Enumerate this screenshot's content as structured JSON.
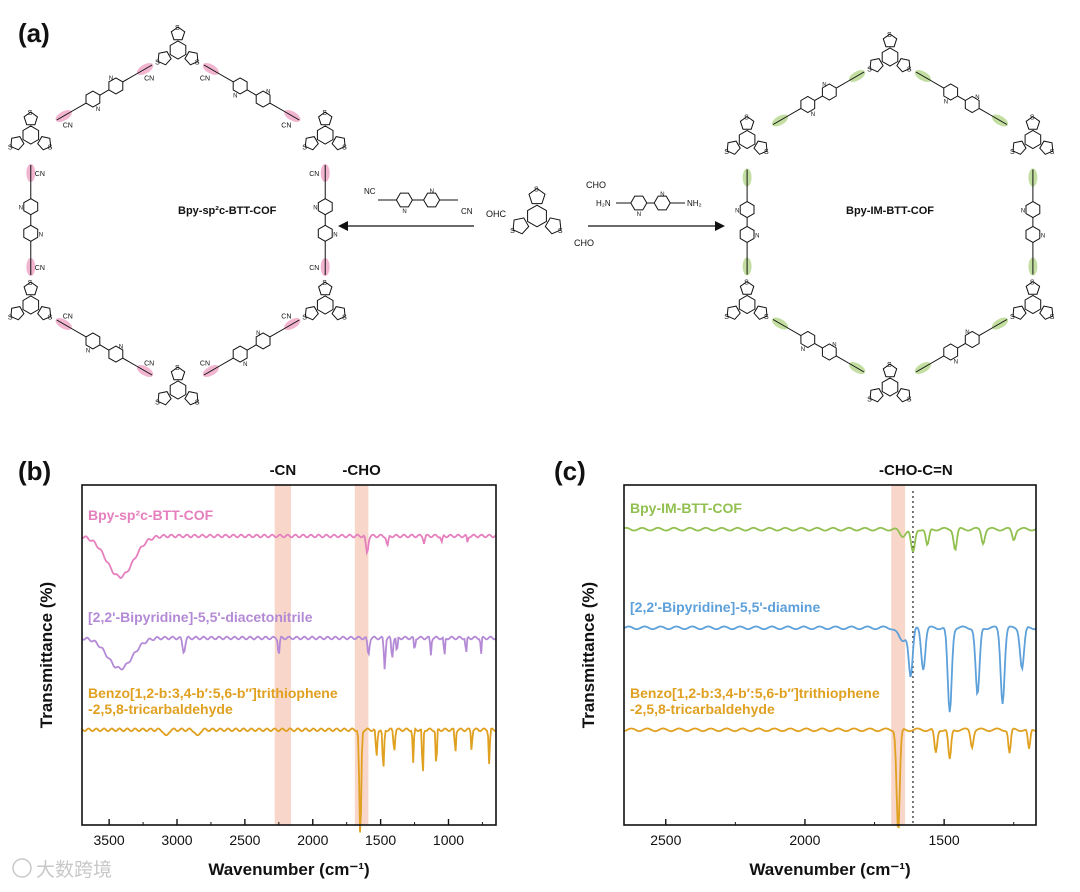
{
  "panels": {
    "a": {
      "label": "(a)",
      "left_cof_name": "Bpy-sp²c-BTT-COF",
      "right_cof_name": "Bpy-IM-BTT-COF",
      "left_reagent": "NC-CH2-[2,2'-bipyridine]-CH2-CN",
      "right_reagent": "H2N-[2,2'-bipyridine]-NH2",
      "core_labels": {
        "cho_top": "CHO",
        "cho_left": "OHC",
        "cho_bottom": "CHO"
      },
      "reagent_labels": {
        "cn_left": "NC",
        "cn_right": "CN",
        "nh2_left": "H₂N",
        "nh2_right": "NH₂"
      },
      "ring_labels": {
        "cn": "CN",
        "nc": "NC",
        "n": "N",
        "s": "S"
      },
      "left_highlight_color": "#f0a8c8",
      "right_highlight_color": "#b8d890"
    },
    "b": {
      "label": "(b)"
    },
    "c": {
      "label": "(c)"
    }
  },
  "watermark": "大数跨境",
  "chart_data": [
    {
      "type": "line",
      "panel": "b",
      "title": "",
      "xlabel": "Wavenumber (cm⁻¹)",
      "ylabel": "Transmittance (%)",
      "xlim": [
        3700,
        650
      ],
      "x_reversed": true,
      "ticks": [
        3500,
        3000,
        2500,
        2000,
        1500,
        1000
      ],
      "tick_labels": [
        "3500",
        "3000",
        "2500",
        "2000",
        "1500",
        "1000"
      ],
      "bands": [
        {
          "label": "-CN",
          "from": 2280,
          "to": 2160,
          "color": "#f6c9b8"
        },
        {
          "label": "-CHO",
          "from": 1690,
          "to": 1590,
          "color": "#f6c9b8"
        }
      ],
      "series": [
        {
          "name": "Bpy-sp²c-BTT-COF",
          "color": "#e67fbe",
          "offset": 0.85,
          "features": [
            [
              3420,
              -0.12,
              140
            ],
            [
              1600,
              -0.05,
              12
            ],
            [
              1450,
              -0.03,
              10
            ],
            [
              1180,
              -0.02,
              8
            ],
            [
              1050,
              -0.02,
              8
            ],
            [
              860,
              -0.02,
              6
            ]
          ]
        },
        {
          "name": "[2,2'-Bipyridine]-5,5'-diacetonitrile",
          "color": "#b48ad6",
          "offset": 0.55,
          "features": [
            [
              3420,
              -0.09,
              130
            ],
            [
              2950,
              -0.04,
              14
            ],
            [
              2250,
              -0.05,
              8
            ],
            [
              1590,
              -0.05,
              10
            ],
            [
              1470,
              -0.09,
              8
            ],
            [
              1415,
              -0.06,
              8
            ],
            [
              1380,
              -0.05,
              6
            ],
            [
              1250,
              -0.04,
              6
            ],
            [
              1130,
              -0.05,
              6
            ],
            [
              1030,
              -0.06,
              6
            ],
            [
              870,
              -0.05,
              6
            ],
            [
              760,
              -0.05,
              5
            ]
          ]
        },
        {
          "name": "Benzo[1,2-b:3,4-b′:5,6-b″]trithiophene -2,5,8-tricarbaldehyde",
          "color": "#e0a020",
          "offset": 0.28,
          "features": [
            [
              3080,
              -0.02,
              20
            ],
            [
              2850,
              -0.02,
              20
            ],
            [
              1650,
              -0.32,
              10
            ],
            [
              1530,
              -0.08,
              8
            ],
            [
              1480,
              -0.12,
              8
            ],
            [
              1400,
              -0.06,
              8
            ],
            [
              1260,
              -0.1,
              6
            ],
            [
              1190,
              -0.15,
              6
            ],
            [
              1090,
              -0.12,
              6
            ],
            [
              950,
              -0.07,
              6
            ],
            [
              830,
              -0.06,
              6
            ],
            [
              700,
              -0.1,
              6
            ]
          ]
        }
      ]
    },
    {
      "type": "line",
      "panel": "c",
      "title": "",
      "xlabel": "Wavenumber (cm⁻¹)",
      "ylabel": "Transmittance (%)",
      "xlim": [
        2650,
        1170
      ],
      "x_reversed": true,
      "ticks": [
        2500,
        2000,
        1500
      ],
      "tick_labels": [
        "2500",
        "2000",
        "1500"
      ],
      "bands": [
        {
          "label": "-CHO",
          "from": 1690,
          "to": 1640,
          "color": "#f6c9b8"
        }
      ],
      "dotted_lines": [
        {
          "label": "-C=N",
          "x": 1612
        }
      ],
      "series": [
        {
          "name": "Bpy-IM-BTT-COF",
          "color": "#92c050",
          "offset": 0.87,
          "features": [
            [
              1650,
              -0.02,
              15
            ],
            [
              1612,
              -0.07,
              10
            ],
            [
              1560,
              -0.05,
              8
            ],
            [
              1460,
              -0.06,
              8
            ],
            [
              1360,
              -0.04,
              8
            ],
            [
              1250,
              -0.03,
              8
            ]
          ]
        },
        {
          "name": "[2,2'-Bipyridine]-5,5'-diamine",
          "color": "#5da0da",
          "offset": 0.58,
          "features": [
            [
              1650,
              -0.04,
              20
            ],
            [
              1620,
              -0.14,
              10
            ],
            [
              1575,
              -0.12,
              10
            ],
            [
              1480,
              -0.25,
              10
            ],
            [
              1380,
              -0.2,
              10
            ],
            [
              1290,
              -0.22,
              10
            ],
            [
              1220,
              -0.12,
              10
            ]
          ]
        },
        {
          "name": "Benzo[1,2-b:3,4-b′:5,6-b″]trithiophene -2,5,8-tricarbaldehyde",
          "color": "#e0a020",
          "offset": 0.28,
          "features": [
            [
              1665,
              -0.3,
              8
            ],
            [
              1530,
              -0.07,
              7
            ],
            [
              1480,
              -0.09,
              7
            ],
            [
              1400,
              -0.05,
              7
            ],
            [
              1265,
              -0.07,
              6
            ],
            [
              1195,
              -0.06,
              6
            ]
          ]
        }
      ]
    }
  ]
}
